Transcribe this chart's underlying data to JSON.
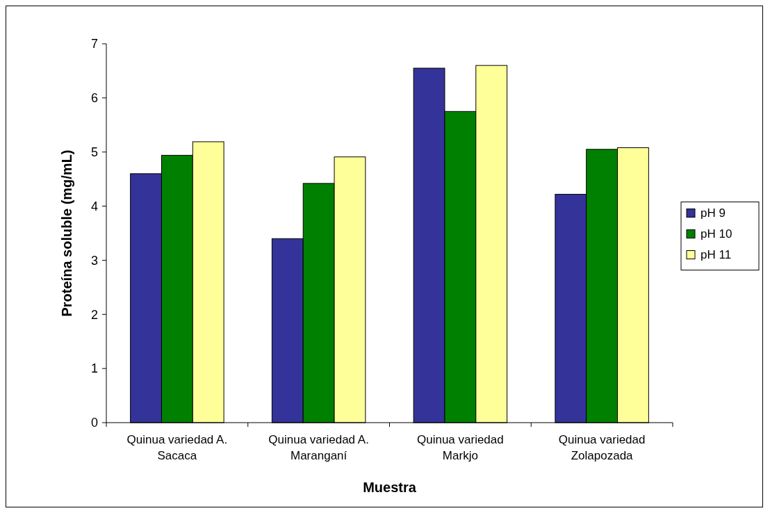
{
  "chart_data": {
    "type": "bar",
    "xlabel": "Muestra",
    "ylabel": "Proteína soluble (mg/mL)",
    "categories": [
      "Quinua variedad A. Sacaca",
      "Quinua variedad A. Maranganí",
      "Quinua variedad Markjo",
      "Quinua variedad Zolapozada"
    ],
    "series": [
      {
        "name": "pH 9",
        "color": "#333399",
        "values": [
          4.6,
          3.4,
          6.55,
          4.22
        ]
      },
      {
        "name": "pH 10",
        "color": "#008000",
        "values": [
          4.94,
          4.42,
          5.75,
          5.05
        ]
      },
      {
        "name": "pH 11",
        "color": "#ffff99",
        "values": [
          5.19,
          4.91,
          6.6,
          5.08
        ]
      }
    ],
    "ylim": [
      0,
      7
    ],
    "yticks": [
      0,
      1,
      2,
      3,
      4,
      5,
      6,
      7
    ],
    "grid": false,
    "legend": "right"
  }
}
